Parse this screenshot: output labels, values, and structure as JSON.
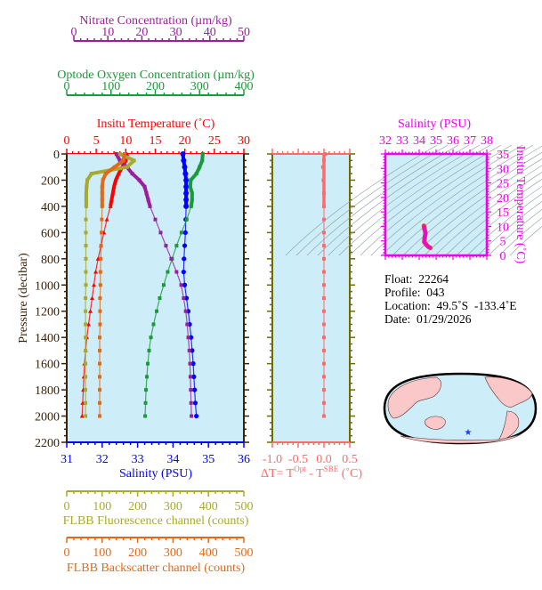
{
  "colors": {
    "nitrate": "#9b1f9b",
    "oxygen": "#1a9a3a",
    "temperature": "#ff0000",
    "salinity": "#0000ff",
    "fluorescence": "#a8a832",
    "backscatter": "#e06a18",
    "delta_t": "#ff6a6a",
    "ts": "#ee00ee",
    "frame_dark": "#3a2208",
    "frame_olive": "#6b6b00",
    "plot_bg": "#cdeef8",
    "land": "#fac8c8",
    "star": "#1a3cff"
  },
  "axes": {
    "nitrate": {
      "label": "Nitrate Concentration (µm/kg)",
      "ticks": [
        "0",
        "10",
        "20",
        "30",
        "40",
        "50"
      ]
    },
    "oxygen": {
      "label": "Optode Oxygen Concentration (µm/kg)",
      "ticks": [
        "0",
        "100",
        "200",
        "300",
        "400"
      ]
    },
    "temperature": {
      "label": "Insitu Temperature (˚C)",
      "ticks": [
        "0",
        "5",
        "10",
        "15",
        "20",
        "25",
        "30"
      ]
    },
    "pressure": {
      "label": "Pressure (decibar)",
      "ticks": [
        "0",
        "200",
        "400",
        "600",
        "800",
        "1000",
        "1200",
        "1400",
        "1600",
        "1800",
        "2000",
        "2200"
      ]
    },
    "salinity": {
      "label": "Salinity (PSU)",
      "ticks": [
        "31",
        "32",
        "33",
        "34",
        "35",
        "36"
      ]
    },
    "fluorescence": {
      "label": "FLBB Fluorescence channel (counts)",
      "ticks": [
        "0",
        "100",
        "200",
        "300",
        "400",
        "500"
      ]
    },
    "backscatter": {
      "label": "FLBB Backscatter channel (counts)",
      "ticks": [
        "0",
        "100",
        "200",
        "300",
        "400",
        "500"
      ]
    },
    "delta_t": {
      "label_main": "ΔT= T",
      "label_sup1": "Opt",
      "label_mid": " - T",
      "label_sup2": "SBE",
      "label_end": " (˚C)",
      "ticks": [
        "-1.0",
        "-0.5",
        "0.0",
        "0.5"
      ]
    },
    "ts_salinity": {
      "label": "Salinity (PSU)",
      "ticks": [
        "32",
        "33",
        "34",
        "35",
        "36",
        "37",
        "38"
      ]
    },
    "ts_temperature": {
      "label": "Insitu Temperature (˚C)",
      "ticks": [
        "35",
        "30",
        "25",
        "20",
        "15",
        "10",
        "5",
        "0"
      ]
    }
  },
  "info": {
    "float": "Float:  22264",
    "profile": "Profile:  043",
    "location": "Location:  49.5˚S  -133.4˚E",
    "date": "Date:  01/29/2026"
  },
  "chart_data": [
    {
      "type": "line",
      "title": "Float 22264 Profile 043 vertical profiles",
      "ylabel": "Pressure (decibar)",
      "ylim": [
        2200,
        0
      ],
      "pressure": [
        0,
        50,
        100,
        150,
        200,
        250,
        300,
        350,
        400,
        500,
        600,
        700,
        800,
        900,
        1000,
        1100,
        1200,
        1300,
        1400,
        1500,
        1600,
        1700,
        1800,
        1900,
        2000
      ],
      "series": [
        {
          "name": "Insitu Temperature (˚C)",
          "xlim": [
            0,
            30
          ],
          "values": [
            10.2,
            10.0,
            9.4,
            8.8,
            8.3,
            8.0,
            7.8,
            7.6,
            7.4,
            6.8,
            6.3,
            5.8,
            5.3,
            4.9,
            4.6,
            4.3,
            4.0,
            3.7,
            3.4,
            3.2,
            3.0,
            2.9,
            2.8,
            2.7,
            2.6
          ]
        },
        {
          "name": "Salinity (PSU)",
          "xlim": [
            31,
            36
          ],
          "values": [
            34.28,
            34.3,
            34.33,
            34.35,
            34.37,
            34.37,
            34.37,
            34.37,
            34.37,
            34.36,
            34.35,
            34.33,
            34.31,
            34.3,
            34.33,
            34.38,
            34.43,
            34.47,
            34.51,
            34.54,
            34.57,
            34.59,
            34.61,
            34.63,
            34.66
          ]
        },
        {
          "name": "Optode Oxygen Concentration (µm/kg)",
          "xlim": [
            0,
            400
          ],
          "values": [
            307,
            306,
            300,
            293,
            280,
            279,
            283,
            283,
            281,
            271,
            259,
            248,
            238,
            228,
            219,
            210,
            203,
            196,
            190,
            186,
            183,
            181,
            179,
            178,
            177
          ]
        },
        {
          "name": "Nitrate Concentration (µm/kg)",
          "xlim": [
            0,
            50
          ],
          "values": [
            14,
            15,
            17,
            18.5,
            20.5,
            22,
            22.5,
            23,
            23.5,
            25,
            26.5,
            28,
            29.5,
            31,
            32.3,
            33,
            33.6,
            34,
            34.3,
            34.6,
            34.8,
            34.9,
            35.0,
            35.1,
            35.2
          ]
        },
        {
          "name": "FLBB Fluorescence channel (counts)",
          "xlim": [
            0,
            500
          ],
          "values": [
            150,
            190,
            170,
            70,
            58,
            56,
            55,
            55,
            55,
            54,
            54,
            54,
            54,
            54,
            54,
            53,
            53,
            53,
            53,
            53,
            53,
            53,
            53,
            53,
            53
          ]
        },
        {
          "name": "FLBB Backscatter channel (counts)",
          "xlim": [
            0,
            500
          ],
          "values": [
            163,
            160,
            135,
            110,
            102,
            100,
            100,
            100,
            100,
            99,
            98,
            97,
            96,
            95,
            95,
            94,
            94,
            94,
            93,
            93,
            93,
            93,
            93,
            93,
            93
          ]
        }
      ]
    },
    {
      "type": "line",
      "title": "Temperature difference",
      "xlabel": "ΔT= T_Opt - T_SBE (˚C)",
      "xlim": [
        -1.0,
        0.5
      ],
      "ylim": [
        2200,
        0
      ],
      "pressure": [
        0,
        50,
        100,
        200,
        300,
        400,
        500,
        600,
        700,
        800,
        900,
        1000,
        1100,
        1200,
        1300,
        1400,
        1500,
        1600,
        1700,
        1800,
        1900,
        2000
      ],
      "values": [
        0.02,
        0.0,
        -0.02,
        -0.01,
        0.0,
        0.0,
        0.0,
        0.0,
        0.0,
        0.0,
        0.0,
        0.0,
        0.0,
        0.0,
        0.0,
        0.0,
        0.0,
        0.0,
        0.0,
        0.0,
        0.0,
        0.0
      ]
    },
    {
      "type": "scatter",
      "title": "T-S diagram",
      "xlabel": "Salinity (PSU)",
      "ylabel": "Insitu Temperature (˚C)",
      "xlim": [
        32,
        38
      ],
      "ylim": [
        0,
        35
      ],
      "x": [
        34.28,
        34.3,
        34.35,
        34.37,
        34.37,
        34.33,
        34.3,
        34.38,
        34.47,
        34.54,
        34.59,
        34.66
      ],
      "y": [
        10.2,
        9.4,
        8.3,
        7.8,
        7.4,
        6.3,
        4.6,
        4.0,
        3.4,
        3.0,
        2.8,
        2.6
      ],
      "grid": "density contours"
    }
  ]
}
